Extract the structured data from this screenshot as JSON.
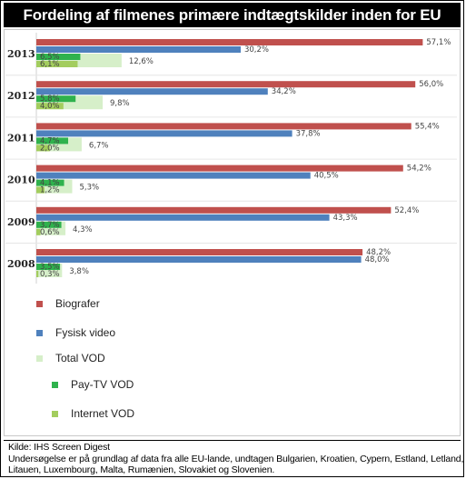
{
  "title": "Fordeling af filmenes primære indtægtskilder inden for EU",
  "footer": {
    "source": "Kilde: IHS Screen Digest",
    "note_line1": "Undersøgelse er på grundlag af data fra alle EU-lande, undtagen Bulgarien, Kroatien, Cypern, Estland, Letland,",
    "note_line2": "Litauen, Luxembourg, Malta, Rumænien, Slovakiet og Slovenien."
  },
  "chart_data": {
    "type": "bar",
    "orientation": "horizontal",
    "categories": [
      "2013",
      "2012",
      "2011",
      "2010",
      "2009",
      "2008"
    ],
    "series": [
      {
        "name": "Biografer",
        "color": "#c0504d",
        "values": [
          57.1,
          56.0,
          55.4,
          54.2,
          52.4,
          48.2
        ],
        "labels": [
          "57,1%",
          "56,0%",
          "55,4%",
          "54,2%",
          "52,4%",
          "48,2%"
        ]
      },
      {
        "name": "Fysisk video",
        "color": "#4f81bd",
        "values": [
          30.2,
          34.2,
          37.8,
          40.5,
          43.3,
          48.0
        ],
        "labels": [
          "30,2%",
          "34,2%",
          "37,8%",
          "40,5%",
          "43,3%",
          "48,0%"
        ]
      },
      {
        "name": "Pay-TV VOD",
        "color": "#2fb24d",
        "values": [
          6.5,
          5.8,
          4.7,
          4.1,
          3.7,
          3.5
        ],
        "labels": [
          "6,5%",
          "5,8%",
          "4,7%",
          "4,1%",
          "3,7%",
          "3,5%"
        ]
      },
      {
        "name": "Total VOD",
        "color": "#d6efc9",
        "values": [
          12.6,
          9.8,
          6.7,
          5.3,
          4.3,
          3.8
        ],
        "labels": [
          "12,6%",
          "9,8%",
          "6,7%",
          "5,3%",
          "4,3%",
          "3,8%"
        ]
      },
      {
        "name": "Internet VOD",
        "color": "#a3cd5e",
        "values": [
          6.1,
          4.0,
          2.0,
          1.2,
          0.6,
          0.3
        ],
        "labels": [
          "6,1%",
          "4,0%",
          "2,0%",
          "1,2%",
          "0,6%",
          "0,3%"
        ]
      }
    ],
    "legend": {
      "position": "bottom-left",
      "order": [
        "Biografer",
        "Fysisk video",
        "Total VOD",
        "Pay-TV VOD",
        "Internet VOD"
      ]
    },
    "grid": false
  }
}
